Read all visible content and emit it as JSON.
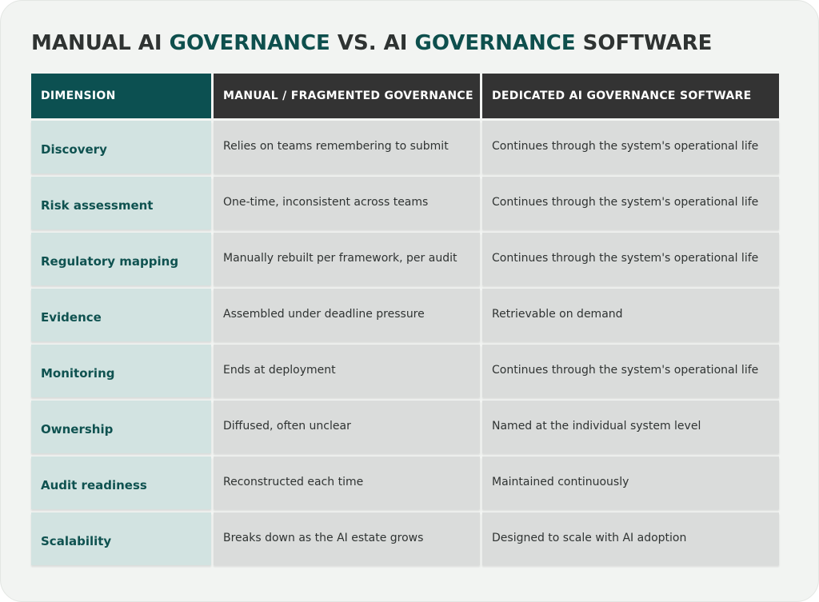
{
  "title": {
    "part1": "MANUAL AI ",
    "part2": "GOVERNANCE",
    "part3": " VS. AI ",
    "part4": "GOVERNANCE",
    "part5": " SOFTWARE"
  },
  "colors": {
    "accent": "#0e4f4d",
    "header_dark": "#333333",
    "header_accent": "#0c5051",
    "dimension_cell": "#d2e3e1",
    "value_cell": "#dadcdb"
  },
  "table": {
    "headers": [
      "DIMENSION",
      "MANUAL / FRAGMENTED GOVERNANCE",
      "DEDICATED AI GOVERNANCE SOFTWARE"
    ],
    "rows": [
      [
        "Discovery",
        "Relies on teams remembering to submit",
        "Continues through the system's operational life"
      ],
      [
        "Risk assessment",
        "One-time, inconsistent across teams",
        "Continues through the system's operational life"
      ],
      [
        "Regulatory mapping",
        "Manually rebuilt per framework, per audit",
        "Continues through the system's operational life"
      ],
      [
        "Evidence",
        "Assembled under deadline pressure",
        "Retrievable on demand"
      ],
      [
        "Monitoring",
        "Ends at deployment",
        "Continues through the system's operational life"
      ],
      [
        "Ownership",
        "Diffused, often unclear",
        "Named at the individual system level"
      ],
      [
        "Audit readiness",
        "Reconstructed each time",
        "Maintained continuously"
      ],
      [
        "Scalability",
        "Breaks down as the AI estate grows",
        "Designed to scale with AI adoption"
      ]
    ]
  }
}
